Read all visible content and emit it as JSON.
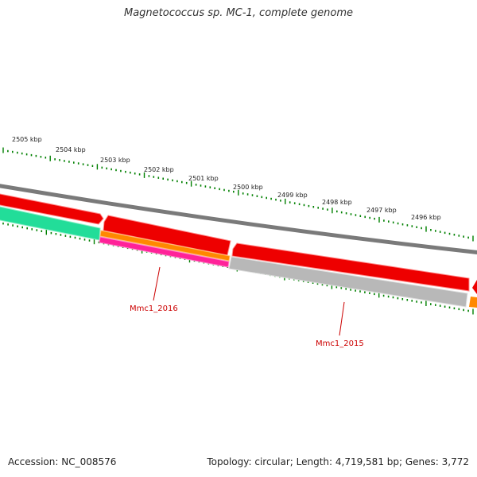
{
  "title": "Magnetococcus sp. MC-1, complete genome",
  "footer": {
    "accession": "Accession: NC_008576",
    "summary": "Topology: circular; Length: 4,719,581 bp; Genes: 3,772"
  },
  "colors": {
    "background": "#ffffff",
    "backbone": "#808080",
    "forward_gene": "#ff0000",
    "reverse_gene_green": "#20d890",
    "reverse_gene_orange": "#ff8c00",
    "reverse_gene_pink": "#ff1493",
    "reverse_gene_gray": "#b4b4b4",
    "tick": "#008000",
    "gene_label": "#cc0000"
  },
  "scale_labels": [
    "2505 kbp",
    "2504 kbp",
    "2503 kbp",
    "2502 kbp",
    "2501 kbp",
    "2500 kbp",
    "2499 kbp",
    "2498 kbp",
    "2497 kbp",
    "2496 kbp"
  ],
  "gene_labels": [
    "Mmc1_2016",
    "Mmc1_2015"
  ]
}
